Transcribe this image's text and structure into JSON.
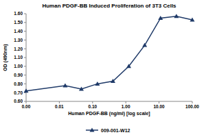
{
  "chart_data": {
    "type": "line",
    "title": "Human PDGF-BB Induced Proliferation of 3T3 Cells",
    "x_label": "Human PDGF-BB (ng/ml) [log scale]",
    "y_label": "OD (490nm)",
    "x": [
      0.001,
      0.015,
      0.046,
      0.14,
      0.41,
      1.23,
      3.7,
      11.1,
      33.3,
      100
    ],
    "series": [
      {
        "name": "009-001-W12",
        "color": "#1f3a68",
        "marker": "triangle",
        "line_style": "solid",
        "values": [
          0.72,
          0.78,
          0.74,
          0.8,
          0.83,
          1.0,
          1.24,
          1.55,
          1.57,
          1.53
        ]
      }
    ],
    "log": "x",
    "xlim": [
      0.001,
      100
    ],
    "xticks": [
      {
        "value": 0.001,
        "label": "0.00"
      },
      {
        "value": 0.01,
        "label": "0.01"
      },
      {
        "value": 0.1,
        "label": "0.10"
      },
      {
        "value": 1,
        "label": "1.00"
      },
      {
        "value": 10,
        "label": "10.00"
      },
      {
        "value": 100,
        "label": "100.00"
      }
    ],
    "ylim": [
      0.6,
      1.6
    ],
    "yticks": [
      {
        "value": 0.6,
        "label": "0.60"
      },
      {
        "value": 0.7,
        "label": "0.70"
      },
      {
        "value": 0.8,
        "label": "0.80"
      },
      {
        "value": 0.9,
        "label": "0.90"
      },
      {
        "value": 1.0,
        "label": "1.00"
      },
      {
        "value": 1.1,
        "label": "1.10"
      },
      {
        "value": 1.2,
        "label": "1.20"
      },
      {
        "value": 1.3,
        "label": "1.30"
      },
      {
        "value": 1.4,
        "label": "1.40"
      },
      {
        "value": 1.5,
        "label": "1.50"
      },
      {
        "value": 1.6,
        "label": "1.60"
      }
    ],
    "grid": false,
    "legend": "bottom"
  }
}
